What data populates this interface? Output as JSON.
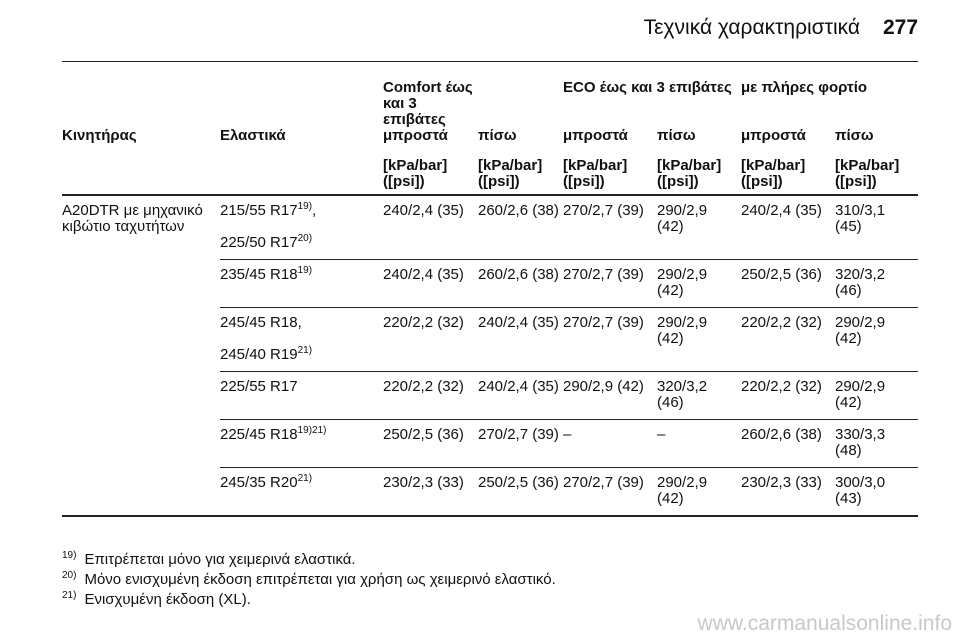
{
  "header": {
    "title": "Τεχνικά χαρακτηριστικά",
    "page": "277"
  },
  "table": {
    "group_headers": [
      "Comfort έως και 3 επιβάτες",
      "ECO έως και 3 επιβάτες",
      "με πλήρες φορτίο"
    ],
    "columns": [
      "Κινητήρας",
      "Ελαστικά",
      "μπροστά",
      "πίσω",
      "μπροστά",
      "πίσω",
      "μπροστά",
      "πίσω"
    ],
    "units": [
      "[kPa/bar] ([psi])",
      "[kPa/bar] ([psi])",
      "[kPa/bar] ([psi])",
      "[kPa/bar] ([psi])",
      "[kPa/bar] ([psi])",
      "[kPa/bar] ([psi])"
    ],
    "engine": "A20DTR με μηχανικό κιβώτιο ταχυτήτων",
    "groups": [
      {
        "tyres": [
          {
            "name": "215/55 R17",
            "note": "19)",
            "suffix": ","
          },
          {
            "name": "225/50 R17",
            "note": "20)"
          }
        ],
        "values": [
          "240/2,4 (35)",
          "260/2,6 (38)",
          "270/2,7 (39)",
          "290/2,9 (42)",
          "240/2,4 (35)",
          "310/3,1 (45)"
        ]
      },
      {
        "tyres": [
          {
            "name": "235/45 R18",
            "note": "19)"
          }
        ],
        "values": [
          "240/2,4 (35)",
          "260/2,6 (38)",
          "270/2,7 (39)",
          "290/2,9 (42)",
          "250/2,5 (36)",
          "320/3,2 (46)"
        ]
      },
      {
        "tyres": [
          {
            "name": "245/45 R18",
            "suffix": ","
          },
          {
            "name": "245/40 R19",
            "note": "21)"
          }
        ],
        "values": [
          "220/2,2 (32)",
          "240/2,4 (35)",
          "270/2,7 (39)",
          "290/2,9 (42)",
          "220/2,2 (32)",
          "290/2,9 (42)"
        ]
      },
      {
        "tyres": [
          {
            "name": "225/55 R17"
          }
        ],
        "values": [
          "220/2,2 (32)",
          "240/2,4 (35)",
          "290/2,9 (42)",
          "320/3,2 (46)",
          "220/2,2 (32)",
          "290/2,9 (42)"
        ]
      },
      {
        "tyres": [
          {
            "name": "225/45 R18",
            "note": "19)21)"
          }
        ],
        "values": [
          "250/2,5 (36)",
          "270/2,7 (39)",
          "–",
          "–",
          "260/2,6 (38)",
          "330/3,3 (48)"
        ]
      },
      {
        "tyres": [
          {
            "name": "245/35 R20",
            "note": "21)"
          }
        ],
        "values": [
          "230/2,3 (33)",
          "250/2,5 (36)",
          "270/2,7 (39)",
          "290/2,9 (42)",
          "230/2,3 (33)",
          "300/3,0 (43)"
        ]
      }
    ]
  },
  "footnotes": [
    {
      "mark": "19)",
      "text": "Επιτρέπεται μόνο για χειμερινά ελαστικά."
    },
    {
      "mark": "20)",
      "text": "Μόνο ενισχυμένη έκδοση επιτρέπεται για χρήση ως χειμερινό ελαστικό."
    },
    {
      "mark": "21)",
      "text": "Ενισχυμένη έκδοση (XL)."
    }
  ],
  "watermark": "www.carmanualsonline.info"
}
